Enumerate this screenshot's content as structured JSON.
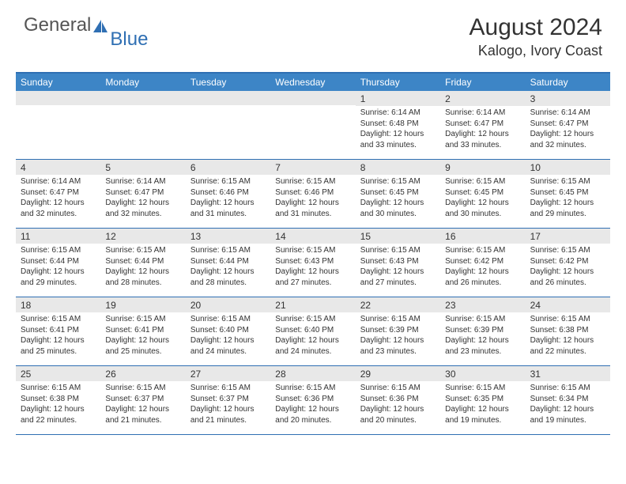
{
  "logo": {
    "general": "General",
    "blue": "Blue"
  },
  "title": "August 2024",
  "location": "Kalogo, Ivory Coast",
  "colors": {
    "header_bg": "#3d85c6",
    "border": "#2f6fb3",
    "day_number_bg": "#e8e8e8",
    "text": "#333333",
    "logo_gray": "#555555",
    "logo_blue": "#2f6fb3"
  },
  "weekdays": [
    "Sunday",
    "Monday",
    "Tuesday",
    "Wednesday",
    "Thursday",
    "Friday",
    "Saturday"
  ],
  "weeks": [
    [
      null,
      null,
      null,
      null,
      {
        "n": "1",
        "sr": "6:14 AM",
        "ss": "6:48 PM",
        "dl": "12 hours and 33 minutes."
      },
      {
        "n": "2",
        "sr": "6:14 AM",
        "ss": "6:47 PM",
        "dl": "12 hours and 33 minutes."
      },
      {
        "n": "3",
        "sr": "6:14 AM",
        "ss": "6:47 PM",
        "dl": "12 hours and 32 minutes."
      }
    ],
    [
      {
        "n": "4",
        "sr": "6:14 AM",
        "ss": "6:47 PM",
        "dl": "12 hours and 32 minutes."
      },
      {
        "n": "5",
        "sr": "6:14 AM",
        "ss": "6:47 PM",
        "dl": "12 hours and 32 minutes."
      },
      {
        "n": "6",
        "sr": "6:15 AM",
        "ss": "6:46 PM",
        "dl": "12 hours and 31 minutes."
      },
      {
        "n": "7",
        "sr": "6:15 AM",
        "ss": "6:46 PM",
        "dl": "12 hours and 31 minutes."
      },
      {
        "n": "8",
        "sr": "6:15 AM",
        "ss": "6:45 PM",
        "dl": "12 hours and 30 minutes."
      },
      {
        "n": "9",
        "sr": "6:15 AM",
        "ss": "6:45 PM",
        "dl": "12 hours and 30 minutes."
      },
      {
        "n": "10",
        "sr": "6:15 AM",
        "ss": "6:45 PM",
        "dl": "12 hours and 29 minutes."
      }
    ],
    [
      {
        "n": "11",
        "sr": "6:15 AM",
        "ss": "6:44 PM",
        "dl": "12 hours and 29 minutes."
      },
      {
        "n": "12",
        "sr": "6:15 AM",
        "ss": "6:44 PM",
        "dl": "12 hours and 28 minutes."
      },
      {
        "n": "13",
        "sr": "6:15 AM",
        "ss": "6:44 PM",
        "dl": "12 hours and 28 minutes."
      },
      {
        "n": "14",
        "sr": "6:15 AM",
        "ss": "6:43 PM",
        "dl": "12 hours and 27 minutes."
      },
      {
        "n": "15",
        "sr": "6:15 AM",
        "ss": "6:43 PM",
        "dl": "12 hours and 27 minutes."
      },
      {
        "n": "16",
        "sr": "6:15 AM",
        "ss": "6:42 PM",
        "dl": "12 hours and 26 minutes."
      },
      {
        "n": "17",
        "sr": "6:15 AM",
        "ss": "6:42 PM",
        "dl": "12 hours and 26 minutes."
      }
    ],
    [
      {
        "n": "18",
        "sr": "6:15 AM",
        "ss": "6:41 PM",
        "dl": "12 hours and 25 minutes."
      },
      {
        "n": "19",
        "sr": "6:15 AM",
        "ss": "6:41 PM",
        "dl": "12 hours and 25 minutes."
      },
      {
        "n": "20",
        "sr": "6:15 AM",
        "ss": "6:40 PM",
        "dl": "12 hours and 24 minutes."
      },
      {
        "n": "21",
        "sr": "6:15 AM",
        "ss": "6:40 PM",
        "dl": "12 hours and 24 minutes."
      },
      {
        "n": "22",
        "sr": "6:15 AM",
        "ss": "6:39 PM",
        "dl": "12 hours and 23 minutes."
      },
      {
        "n": "23",
        "sr": "6:15 AM",
        "ss": "6:39 PM",
        "dl": "12 hours and 23 minutes."
      },
      {
        "n": "24",
        "sr": "6:15 AM",
        "ss": "6:38 PM",
        "dl": "12 hours and 22 minutes."
      }
    ],
    [
      {
        "n": "25",
        "sr": "6:15 AM",
        "ss": "6:38 PM",
        "dl": "12 hours and 22 minutes."
      },
      {
        "n": "26",
        "sr": "6:15 AM",
        "ss": "6:37 PM",
        "dl": "12 hours and 21 minutes."
      },
      {
        "n": "27",
        "sr": "6:15 AM",
        "ss": "6:37 PM",
        "dl": "12 hours and 21 minutes."
      },
      {
        "n": "28",
        "sr": "6:15 AM",
        "ss": "6:36 PM",
        "dl": "12 hours and 20 minutes."
      },
      {
        "n": "29",
        "sr": "6:15 AM",
        "ss": "6:36 PM",
        "dl": "12 hours and 20 minutes."
      },
      {
        "n": "30",
        "sr": "6:15 AM",
        "ss": "6:35 PM",
        "dl": "12 hours and 19 minutes."
      },
      {
        "n": "31",
        "sr": "6:15 AM",
        "ss": "6:34 PM",
        "dl": "12 hours and 19 minutes."
      }
    ]
  ],
  "labels": {
    "sunrise": "Sunrise:",
    "sunset": "Sunset:",
    "daylight": "Daylight:"
  }
}
